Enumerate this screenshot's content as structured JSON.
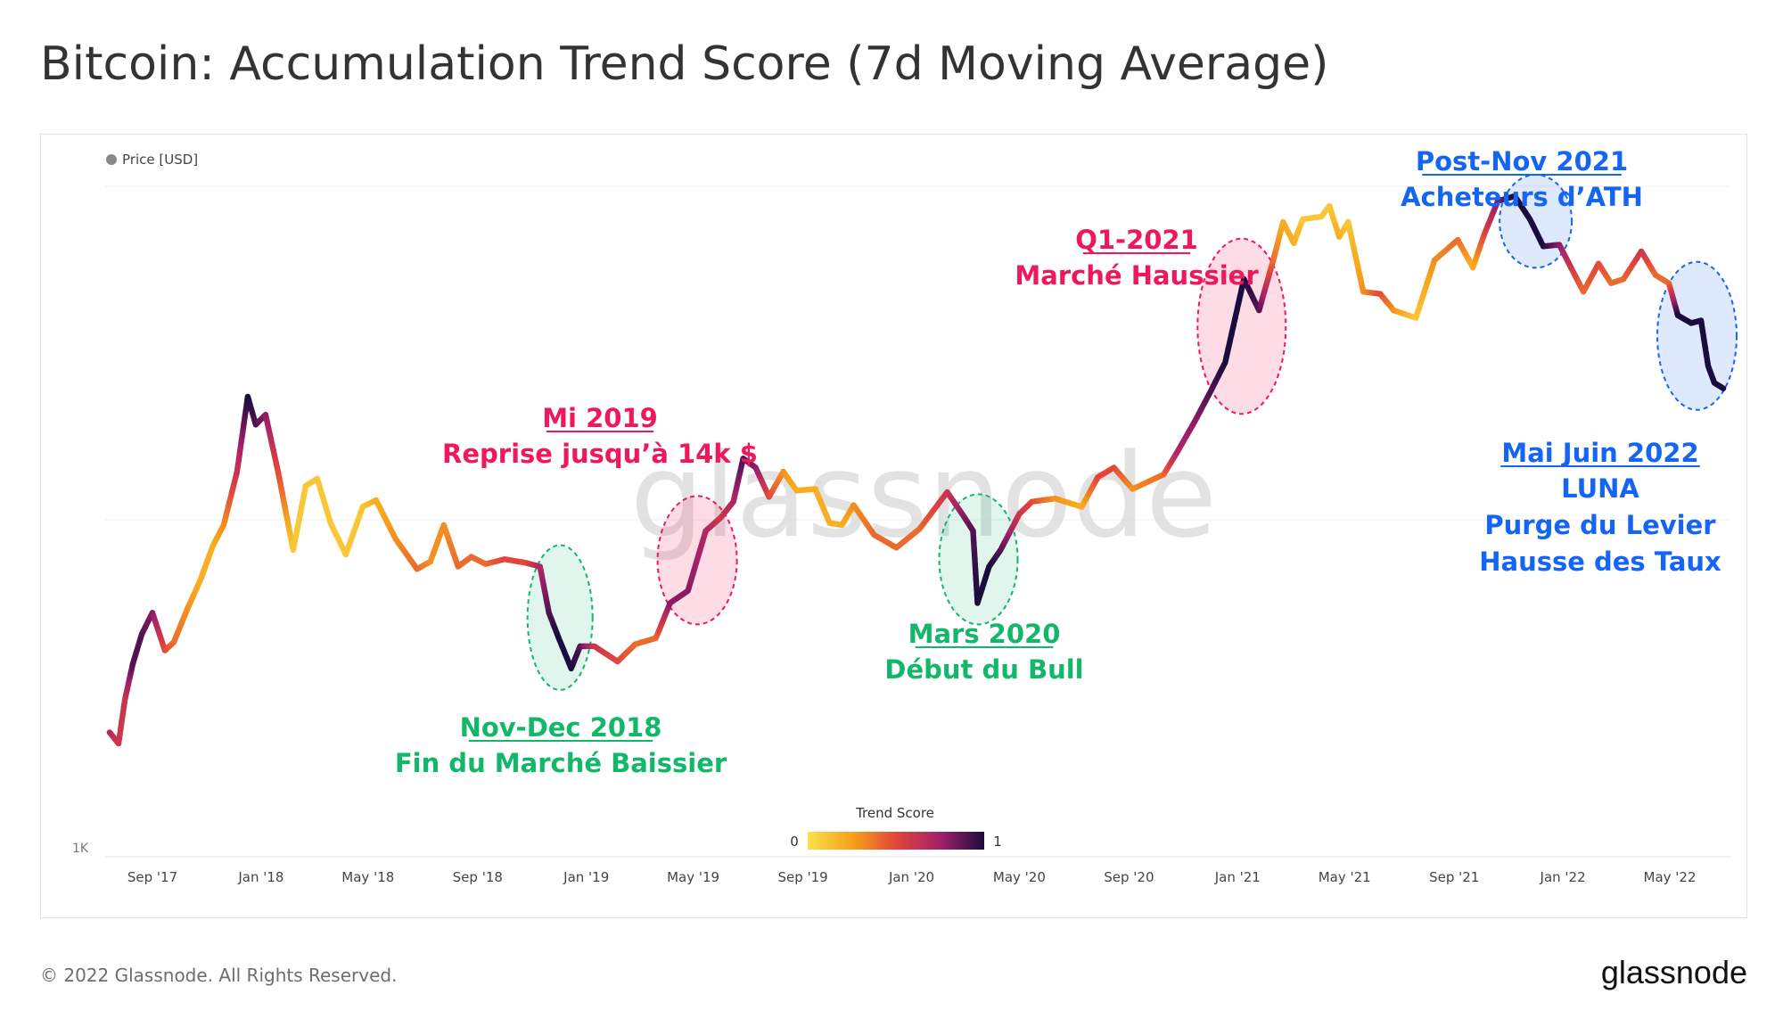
{
  "title": "Bitcoin: Accumulation Trend Score (7d Moving Average)",
  "footer": {
    "copyright": "© 2022 Glassnode. All Rights Reserved.",
    "brand": "glassnode"
  },
  "watermark": "glassnode",
  "colors": {
    "green": "#12b76a",
    "pink": "#f0175a",
    "blue": "#1565f5",
    "score_low": "#f9e04b",
    "score_mid1": "#f7a21b",
    "score_mid2": "#e2463b",
    "score_mid3": "#a3206b",
    "score_high": "#1a0c3e"
  },
  "chart_data": {
    "type": "line",
    "title": "Bitcoin: Accumulation Trend Score (7d Moving Average)",
    "legend": {
      "label": "Price [USD]",
      "position": "top-left"
    },
    "y_axis": {
      "scale": "log",
      "tick_label": "1K",
      "ylim": [
        1000,
        80000
      ]
    },
    "x_ticks": [
      "Sep '17",
      "Jan '18",
      "May '18",
      "Sep '18",
      "Jan '19",
      "May '19",
      "Sep '19",
      "Jan '20",
      "May '20",
      "Sep '20",
      "Jan '21",
      "May '21",
      "Sep '21",
      "Jan '22",
      "May '22"
    ],
    "x_tick_dates": [
      "2017-09-01",
      "2018-01-01",
      "2018-05-01",
      "2018-09-01",
      "2019-01-01",
      "2019-05-01",
      "2019-09-01",
      "2020-01-01",
      "2020-05-01",
      "2020-09-01",
      "2021-01-01",
      "2021-05-01",
      "2021-09-01",
      "2022-01-01",
      "2022-05-01"
    ],
    "x_range": [
      "2017-07-10",
      "2022-07-08"
    ],
    "color_scale": {
      "label": "Trend Score",
      "min_label": "0",
      "max_label": "1",
      "min": 0,
      "max": 1
    },
    "series": [
      {
        "name": "Price [USD]",
        "points": [
          {
            "date": "2017-07-15",
            "price": 2200,
            "score": 0.7
          },
          {
            "date": "2017-07-25",
            "price": 2050,
            "score": 0.6
          },
          {
            "date": "2017-08-01",
            "price": 2700,
            "score": 0.6
          },
          {
            "date": "2017-08-10",
            "price": 3400,
            "score": 0.9
          },
          {
            "date": "2017-08-20",
            "price": 4100,
            "score": 0.9
          },
          {
            "date": "2017-09-01",
            "price": 4700,
            "score": 0.8
          },
          {
            "date": "2017-09-15",
            "price": 3700,
            "score": 0.5
          },
          {
            "date": "2017-09-25",
            "price": 3900,
            "score": 0.4
          },
          {
            "date": "2017-10-10",
            "price": 4800,
            "score": 0.3
          },
          {
            "date": "2017-10-25",
            "price": 5800,
            "score": 0.2
          },
          {
            "date": "2017-11-08",
            "price": 7200,
            "score": 0.2
          },
          {
            "date": "2017-11-20",
            "price": 8200,
            "score": 0.3
          },
          {
            "date": "2017-12-05",
            "price": 11500,
            "score": 0.6
          },
          {
            "date": "2017-12-17",
            "price": 18500,
            "score": 1.0
          },
          {
            "date": "2017-12-26",
            "price": 15500,
            "score": 0.9
          },
          {
            "date": "2018-01-06",
            "price": 16500,
            "score": 0.8
          },
          {
            "date": "2018-01-20",
            "price": 11500,
            "score": 0.5
          },
          {
            "date": "2018-02-06",
            "price": 7000,
            "score": 0.1
          },
          {
            "date": "2018-02-20",
            "price": 10500,
            "score": 0.1
          },
          {
            "date": "2018-03-05",
            "price": 11000,
            "score": 0.1
          },
          {
            "date": "2018-03-20",
            "price": 8300,
            "score": 0.1
          },
          {
            "date": "2018-04-06",
            "price": 6800,
            "score": 0.1
          },
          {
            "date": "2018-04-25",
            "price": 9200,
            "score": 0.1
          },
          {
            "date": "2018-05-10",
            "price": 9600,
            "score": 0.2
          },
          {
            "date": "2018-06-01",
            "price": 7500,
            "score": 0.3
          },
          {
            "date": "2018-06-25",
            "price": 6200,
            "score": 0.4
          },
          {
            "date": "2018-07-10",
            "price": 6500,
            "score": 0.3
          },
          {
            "date": "2018-07-25",
            "price": 8200,
            "score": 0.3
          },
          {
            "date": "2018-08-10",
            "price": 6300,
            "score": 0.4
          },
          {
            "date": "2018-08-25",
            "price": 6700,
            "score": 0.4
          },
          {
            "date": "2018-09-10",
            "price": 6400,
            "score": 0.4
          },
          {
            "date": "2018-10-01",
            "price": 6600,
            "score": 0.5
          },
          {
            "date": "2018-10-25",
            "price": 6450,
            "score": 0.5
          },
          {
            "date": "2018-11-10",
            "price": 6300,
            "score": 0.7
          },
          {
            "date": "2018-11-20",
            "price": 4700,
            "score": 0.9
          },
          {
            "date": "2018-12-01",
            "price": 4000,
            "score": 1.0
          },
          {
            "date": "2018-12-15",
            "price": 3300,
            "score": 1.0
          },
          {
            "date": "2018-12-25",
            "price": 3800,
            "score": 0.9
          },
          {
            "date": "2019-01-10",
            "price": 3800,
            "score": 0.6
          },
          {
            "date": "2019-02-05",
            "price": 3450,
            "score": 0.5
          },
          {
            "date": "2019-02-25",
            "price": 3850,
            "score": 0.4
          },
          {
            "date": "2019-03-20",
            "price": 4000,
            "score": 0.4
          },
          {
            "date": "2019-04-05",
            "price": 5000,
            "score": 0.8
          },
          {
            "date": "2019-04-25",
            "price": 5400,
            "score": 0.8
          },
          {
            "date": "2019-05-15",
            "price": 7900,
            "score": 0.7
          },
          {
            "date": "2019-06-01",
            "price": 8600,
            "score": 0.6
          },
          {
            "date": "2019-06-15",
            "price": 9500,
            "score": 0.7
          },
          {
            "date": "2019-06-26",
            "price": 12500,
            "score": 0.9
          },
          {
            "date": "2019-07-10",
            "price": 11800,
            "score": 0.8
          },
          {
            "date": "2019-07-25",
            "price": 9800,
            "score": 0.5
          },
          {
            "date": "2019-08-10",
            "price": 11500,
            "score": 0.3
          },
          {
            "date": "2019-08-25",
            "price": 10200,
            "score": 0.2
          },
          {
            "date": "2019-09-15",
            "price": 10300,
            "score": 0.2
          },
          {
            "date": "2019-10-01",
            "price": 8300,
            "score": 0.2
          },
          {
            "date": "2019-10-15",
            "price": 8200,
            "score": 0.2
          },
          {
            "date": "2019-10-28",
            "price": 9300,
            "score": 0.3
          },
          {
            "date": "2019-11-20",
            "price": 7700,
            "score": 0.4
          },
          {
            "date": "2019-12-15",
            "price": 7100,
            "score": 0.4
          },
          {
            "date": "2020-01-10",
            "price": 8000,
            "score": 0.4
          },
          {
            "date": "2020-02-10",
            "price": 10100,
            "score": 0.6
          },
          {
            "date": "2020-02-28",
            "price": 8700,
            "score": 0.8
          },
          {
            "date": "2020-03-10",
            "price": 7900,
            "score": 0.9
          },
          {
            "date": "2020-03-15",
            "price": 5000,
            "score": 1.0
          },
          {
            "date": "2020-03-28",
            "price": 6300,
            "score": 1.0
          },
          {
            "date": "2020-04-10",
            "price": 7000,
            "score": 0.9
          },
          {
            "date": "2020-05-01",
            "price": 8800,
            "score": 0.6
          },
          {
            "date": "2020-05-15",
            "price": 9500,
            "score": 0.5
          },
          {
            "date": "2020-06-10",
            "price": 9700,
            "score": 0.3
          },
          {
            "date": "2020-07-10",
            "price": 9200,
            "score": 0.2
          },
          {
            "date": "2020-07-28",
            "price": 11100,
            "score": 0.5
          },
          {
            "date": "2020-08-15",
            "price": 11800,
            "score": 0.5
          },
          {
            "date": "2020-09-05",
            "price": 10300,
            "score": 0.3
          },
          {
            "date": "2020-10-10",
            "price": 11300,
            "score": 0.4
          },
          {
            "date": "2020-10-25",
            "price": 13000,
            "score": 0.7
          },
          {
            "date": "2020-11-15",
            "price": 16000,
            "score": 0.8
          },
          {
            "date": "2020-12-01",
            "price": 19000,
            "score": 0.9
          },
          {
            "date": "2020-12-18",
            "price": 23000,
            "score": 1.0
          },
          {
            "date": "2021-01-08",
            "price": 39000,
            "score": 1.0
          },
          {
            "date": "2021-01-25",
            "price": 32000,
            "score": 0.9
          },
          {
            "date": "2021-02-10",
            "price": 44000,
            "score": 0.4
          },
          {
            "date": "2021-02-21",
            "price": 56000,
            "score": 0.2
          },
          {
            "date": "2021-03-05",
            "price": 49000,
            "score": 0.2
          },
          {
            "date": "2021-03-15",
            "price": 57000,
            "score": 0.1
          },
          {
            "date": "2021-04-05",
            "price": 58000,
            "score": 0.1
          },
          {
            "date": "2021-04-14",
            "price": 62000,
            "score": 0.1
          },
          {
            "date": "2021-04-25",
            "price": 51000,
            "score": 0.2
          },
          {
            "date": "2021-05-05",
            "price": 56000,
            "score": 0.1
          },
          {
            "date": "2021-05-22",
            "price": 36000,
            "score": 0.3
          },
          {
            "date": "2021-06-10",
            "price": 35500,
            "score": 0.5
          },
          {
            "date": "2021-06-25",
            "price": 32000,
            "score": 0.3
          },
          {
            "date": "2021-07-20",
            "price": 30500,
            "score": 0.1
          },
          {
            "date": "2021-08-10",
            "price": 44000,
            "score": 0.3
          },
          {
            "date": "2021-09-05",
            "price": 50000,
            "score": 0.4
          },
          {
            "date": "2021-09-22",
            "price": 42000,
            "score": 0.2
          },
          {
            "date": "2021-10-05",
            "price": 52000,
            "score": 0.5
          },
          {
            "date": "2021-10-20",
            "price": 64000,
            "score": 0.8
          },
          {
            "date": "2021-11-08",
            "price": 66000,
            "score": 1.0
          },
          {
            "date": "2021-11-25",
            "price": 57000,
            "score": 1.0
          },
          {
            "date": "2021-12-10",
            "price": 48000,
            "score": 1.0
          },
          {
            "date": "2021-12-28",
            "price": 48500,
            "score": 0.8
          },
          {
            "date": "2022-01-10",
            "price": 42000,
            "score": 0.6
          },
          {
            "date": "2022-01-24",
            "price": 36000,
            "score": 0.4
          },
          {
            "date": "2022-02-10",
            "price": 43000,
            "score": 0.5
          },
          {
            "date": "2022-02-24",
            "price": 38000,
            "score": 0.4
          },
          {
            "date": "2022-03-10",
            "price": 39000,
            "score": 0.4
          },
          {
            "date": "2022-03-30",
            "price": 46500,
            "score": 0.6
          },
          {
            "date": "2022-04-15",
            "price": 40000,
            "score": 0.4
          },
          {
            "date": "2022-04-30",
            "price": 38000,
            "score": 0.4
          },
          {
            "date": "2022-05-10",
            "price": 31000,
            "score": 1.0
          },
          {
            "date": "2022-05-25",
            "price": 29500,
            "score": 1.0
          },
          {
            "date": "2022-06-05",
            "price": 30000,
            "score": 1.0
          },
          {
            "date": "2022-06-13",
            "price": 22500,
            "score": 1.0
          },
          {
            "date": "2022-06-20",
            "price": 20200,
            "score": 1.0
          },
          {
            "date": "2022-06-30",
            "price": 19500,
            "score": 1.0
          }
        ]
      }
    ],
    "annotations": [
      {
        "id": "nov-dec-2018",
        "color": "green",
        "title": "Nov-Dec 2018",
        "lines": [
          "Fin du Marché Baissier"
        ],
        "from": "2018-11-10",
        "to": "2018-12-25"
      },
      {
        "id": "mi-2019",
        "color": "pink",
        "title": "Mi 2019",
        "lines": [
          "Reprise jusqu’à 14k $"
        ],
        "from": "2019-04-05",
        "to": "2019-06-05"
      },
      {
        "id": "mars-2020",
        "color": "green",
        "title": "Mars 2020",
        "lines": [
          "Début du Bull"
        ],
        "from": "2020-02-15",
        "to": "2020-04-15"
      },
      {
        "id": "q1-2021",
        "color": "pink",
        "title": "Q1-2021",
        "lines": [
          "Marché Haussier"
        ],
        "from": "2020-12-01",
        "to": "2021-02-10"
      },
      {
        "id": "post-nov-2021",
        "color": "blue",
        "title": "Post-Nov 2021",
        "lines": [
          "Acheteurs d’ATH"
        ],
        "from": "2021-11-05",
        "to": "2021-12-28"
      },
      {
        "id": "mai-juin-2022",
        "color": "blue",
        "title": "Mai Juin 2022",
        "lines": [
          "LUNA",
          "Purge du Levier",
          "Hausse des Taux"
        ],
        "from": "2022-05-01",
        "to": "2022-07-01"
      }
    ]
  }
}
